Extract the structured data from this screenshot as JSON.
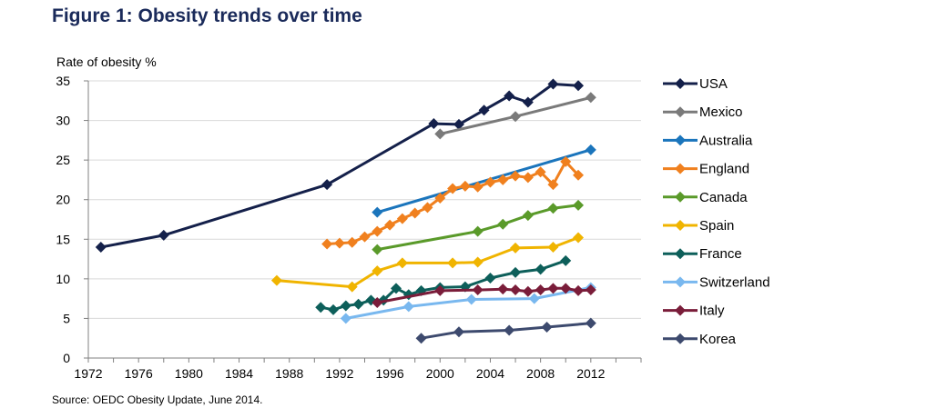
{
  "figure": {
    "title": "Figure 1: Obesity trends over time",
    "source": "Source: OEDC Obesity Update, June 2014."
  },
  "chart_data": {
    "type": "line",
    "title": "Figure 1: Obesity trends over time",
    "xlabel": "",
    "ylabel": "Rate of obesity %",
    "xlim": [
      1972,
      2016
    ],
    "ylim": [
      0,
      35
    ],
    "xticks": [
      1972,
      1976,
      1980,
      1984,
      1988,
      1992,
      1996,
      2000,
      2004,
      2008,
      2012
    ],
    "yticks": [
      0,
      5,
      10,
      15,
      20,
      25,
      30,
      35
    ],
    "grid": true,
    "legend": "right",
    "series": [
      {
        "name": "USA",
        "color": "#14204a",
        "points": [
          [
            1973,
            14.0
          ],
          [
            1978,
            15.5
          ],
          [
            1991,
            21.9
          ],
          [
            1999.5,
            29.6
          ],
          [
            2001.5,
            29.5
          ],
          [
            2003.5,
            31.3
          ],
          [
            2005.5,
            33.1
          ],
          [
            2007,
            32.3
          ],
          [
            2009,
            34.6
          ],
          [
            2011,
            34.4
          ]
        ]
      },
      {
        "name": "Mexico",
        "color": "#7a7a7a",
        "points": [
          [
            2000,
            28.3
          ],
          [
            2006,
            30.5
          ],
          [
            2012,
            32.9
          ]
        ]
      },
      {
        "name": "Australia",
        "color": "#1b75bc",
        "points": [
          [
            1995,
            18.4
          ],
          [
            2012,
            26.3
          ]
        ]
      },
      {
        "name": "England",
        "color": "#f0801e",
        "points": [
          [
            1991,
            14.4
          ],
          [
            1992,
            14.5
          ],
          [
            1993,
            14.6
          ],
          [
            1994,
            15.3
          ],
          [
            1995,
            16.0
          ],
          [
            1996,
            16.8
          ],
          [
            1997,
            17.6
          ],
          [
            1998,
            18.3
          ],
          [
            1999,
            19.0
          ],
          [
            2000,
            20.2
          ],
          [
            2001,
            21.4
          ],
          [
            2002,
            21.7
          ],
          [
            2003,
            21.6
          ],
          [
            2004,
            22.2
          ],
          [
            2005,
            22.5
          ],
          [
            2006,
            23.0
          ],
          [
            2007,
            22.8
          ],
          [
            2008,
            23.5
          ],
          [
            2009,
            21.9
          ],
          [
            2010,
            24.8
          ],
          [
            2011,
            23.1
          ]
        ]
      },
      {
        "name": "Canada",
        "color": "#5a9a2a",
        "points": [
          [
            1995,
            13.7
          ],
          [
            2003,
            16.0
          ],
          [
            2005,
            16.9
          ],
          [
            2007,
            18.0
          ],
          [
            2009,
            18.9
          ],
          [
            2011,
            19.3
          ]
        ]
      },
      {
        "name": "Spain",
        "color": "#f0b400",
        "points": [
          [
            1987,
            9.8
          ],
          [
            1993,
            9.0
          ],
          [
            1995,
            11.0
          ],
          [
            1997,
            12.0
          ],
          [
            2001,
            12.0
          ],
          [
            2003,
            12.1
          ],
          [
            2006,
            13.9
          ],
          [
            2009,
            14.0
          ],
          [
            2011,
            15.2
          ]
        ]
      },
      {
        "name": "France",
        "color": "#0d5f5a",
        "points": [
          [
            1990.5,
            6.4
          ],
          [
            1991.5,
            6.1
          ],
          [
            1992.5,
            6.6
          ],
          [
            1993.5,
            6.8
          ],
          [
            1994.5,
            7.3
          ],
          [
            1995.5,
            7.3
          ],
          [
            1996.5,
            8.8
          ],
          [
            1997.5,
            8.0
          ],
          [
            1998.5,
            8.5
          ],
          [
            2000,
            8.9
          ],
          [
            2002,
            9.0
          ],
          [
            2004,
            10.1
          ],
          [
            2006,
            10.8
          ],
          [
            2008,
            11.2
          ],
          [
            2010,
            12.3
          ]
        ]
      },
      {
        "name": "Switzerland",
        "color": "#79b8ef",
        "points": [
          [
            1992.5,
            5.0
          ],
          [
            1997.5,
            6.5
          ],
          [
            2002.5,
            7.4
          ],
          [
            2007.5,
            7.5
          ],
          [
            2012,
            8.9
          ]
        ]
      },
      {
        "name": "Italy",
        "color": "#7a1d3a",
        "points": [
          [
            1995,
            7.0
          ],
          [
            2000,
            8.5
          ],
          [
            2003,
            8.6
          ],
          [
            2005,
            8.7
          ],
          [
            2006,
            8.6
          ],
          [
            2007,
            8.4
          ],
          [
            2008,
            8.6
          ],
          [
            2009,
            8.8
          ],
          [
            2010,
            8.8
          ],
          [
            2011,
            8.5
          ],
          [
            2012,
            8.6
          ]
        ]
      },
      {
        "name": "Korea",
        "color": "#3d4a6e",
        "points": [
          [
            1998.5,
            2.5
          ],
          [
            2001.5,
            3.3
          ],
          [
            2005.5,
            3.5
          ],
          [
            2008.5,
            3.9
          ],
          [
            2012,
            4.4
          ]
        ]
      }
    ]
  }
}
